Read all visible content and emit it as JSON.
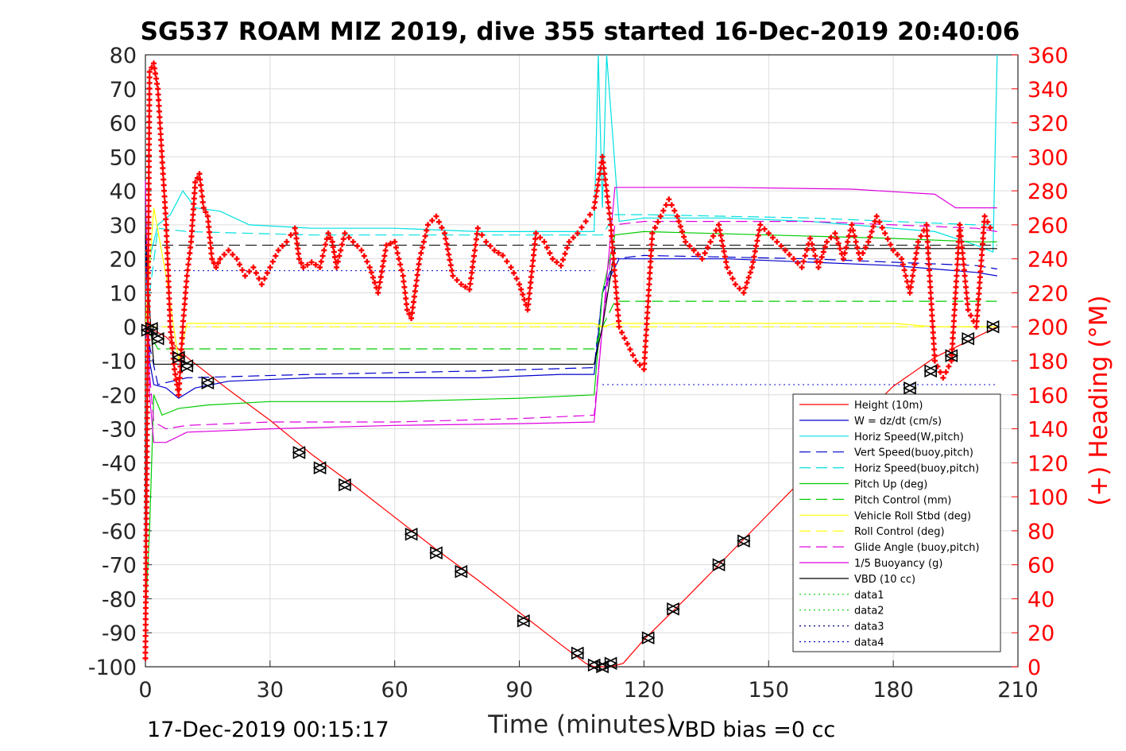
{
  "chart_data": {
    "type": "line",
    "title": "SG537 ROAM MIZ 2019, dive 355 started 16-Dec-2019 20:40:06",
    "xlabel": "Time (minutes)",
    "ylabel": "",
    "y2label": "(+) Heading (°M)",
    "xlim": [
      0,
      210
    ],
    "ylim": [
      -100,
      80
    ],
    "y2lim": [
      0,
      360
    ],
    "xticks": [
      0,
      30,
      60,
      90,
      120,
      150,
      180,
      210
    ],
    "yticks": [
      -100,
      -90,
      -80,
      -70,
      -60,
      -50,
      -40,
      -30,
      -20,
      -10,
      0,
      10,
      20,
      30,
      40,
      50,
      60,
      70,
      80
    ],
    "y2ticks": [
      0,
      20,
      40,
      60,
      80,
      100,
      120,
      140,
      160,
      180,
      200,
      220,
      240,
      260,
      280,
      300,
      320,
      340,
      360
    ],
    "grid": true,
    "legend_position": "bottom-right",
    "footer_left": "17-Dec-2019 00:15:17",
    "footer_right": "VBD bias =0 cc",
    "series": [
      {
        "name": "Height (10m)",
        "color": "#ff0000",
        "style": "solid",
        "x": [
          0,
          2,
          5,
          10,
          20,
          30,
          40,
          50,
          60,
          70,
          80,
          90,
          100,
          106,
          108,
          110,
          112,
          115,
          120,
          130,
          140,
          150,
          160,
          170,
          180,
          190,
          200,
          205
        ],
        "y": [
          0,
          -1,
          -3,
          -9,
          -18.5,
          -27.5,
          -37.5,
          -46.5,
          -56,
          -65.5,
          -74.5,
          -84,
          -93.5,
          -99,
          -100,
          -100.5,
          -100,
          -99,
          -92,
          -80,
          -67.5,
          -55,
          -42.5,
          -29.5,
          -17.5,
          -9,
          -3,
          0
        ]
      },
      {
        "name": "W = dz/dt (cm/s)",
        "color": "#0000cc",
        "style": "solid",
        "x": [
          0,
          1,
          2,
          5,
          8,
          12,
          20,
          40,
          60,
          80,
          100,
          108,
          110,
          114,
          120,
          140,
          160,
          180,
          190,
          200,
          205
        ],
        "y": [
          26,
          -10,
          -17,
          -18,
          -21,
          -18,
          -16,
          -15,
          -15,
          -15,
          -14,
          -14,
          10,
          20,
          20,
          20,
          19,
          18,
          17,
          16,
          15
        ]
      },
      {
        "name": "Horiz Speed(W,pitch)",
        "color": "#00e0e0",
        "style": "solid",
        "x": [
          0,
          1,
          3,
          6,
          9,
          12,
          18,
          25,
          40,
          60,
          80,
          100,
          108,
          109,
          110,
          111,
          114,
          120,
          140,
          160,
          180,
          190,
          200,
          204,
          205
        ],
        "y": [
          22,
          20,
          30,
          33,
          40,
          35,
          34,
          30,
          29,
          29,
          28,
          28,
          28,
          80,
          35,
          80,
          31,
          32,
          32,
          31,
          29,
          28,
          24,
          22,
          80
        ]
      },
      {
        "name": "Vert Speed(buoy,pitch)",
        "color": "#0000cc",
        "style": "dashed",
        "x": [
          0,
          3,
          10,
          40,
          80,
          108,
          110,
          113,
          120,
          160,
          200,
          205
        ],
        "y": [
          0,
          -17,
          -15,
          -14,
          -13,
          -12,
          10,
          20,
          21,
          20,
          18,
          17
        ]
      },
      {
        "name": "Horiz Speed(buoy,pitch)",
        "color": "#00e0e0",
        "style": "dashed",
        "x": [
          0,
          3,
          10,
          40,
          80,
          108,
          110,
          113,
          120,
          160,
          200,
          205
        ],
        "y": [
          0,
          29,
          28,
          27,
          27,
          27,
          27,
          33,
          33,
          32,
          30,
          30
        ]
      },
      {
        "name": "Pitch Up (deg)",
        "color": "#00cc00",
        "style": "solid",
        "x": [
          0,
          1,
          2,
          4,
          8,
          15,
          30,
          60,
          90,
          108,
          110,
          113,
          120,
          150,
          180,
          200,
          205
        ],
        "y": [
          -85,
          -60,
          -20,
          -26,
          -24,
          -23,
          -22,
          -22,
          -21,
          -20,
          10,
          27,
          28,
          27,
          26,
          25,
          25
        ]
      },
      {
        "name": "Pitch Control (mm)",
        "color": "#00cc00",
        "style": "dashed",
        "x": [
          0,
          3,
          108,
          110,
          113,
          205
        ],
        "y": [
          0,
          -6.5,
          -6.5,
          0,
          7.5,
          7.5
        ]
      },
      {
        "name": "Vehicle Roll Stbd (deg)",
        "color": "#ffff00",
        "style": "solid",
        "x": [
          0,
          2,
          5,
          8,
          10,
          20,
          40,
          60,
          80,
          100,
          108,
          110,
          113,
          120,
          140,
          160,
          180,
          190,
          200,
          205
        ],
        "y": [
          0,
          35,
          15,
          -10,
          1,
          1,
          1,
          1,
          1,
          1,
          1,
          0,
          1,
          1,
          1,
          1,
          1,
          0,
          0,
          0
        ]
      },
      {
        "name": "Roll Control (deg)",
        "color": "#ffff00",
        "style": "dashed",
        "x": [
          0,
          2,
          205
        ],
        "y": [
          0,
          0,
          0
        ]
      },
      {
        "name": "Glide Angle (buoy,pitch)",
        "color": "#dd00dd",
        "style": "dashed",
        "x": [
          0,
          2,
          5,
          10,
          30,
          60,
          90,
          108,
          110,
          113,
          120,
          160,
          200,
          205
        ],
        "y": [
          0,
          -28,
          -30,
          -29,
          -28,
          -28,
          -27,
          -26,
          0,
          30,
          31,
          31,
          29,
          28
        ]
      },
      {
        "name": "1/5 Buoyancy (g)",
        "color": "#dd00dd",
        "style": "solid",
        "x": [
          0,
          1,
          2,
          5,
          10,
          30,
          60,
          90,
          108,
          110,
          113,
          140,
          170,
          190,
          195,
          205
        ],
        "y": [
          43,
          -20,
          -34,
          -34,
          -31,
          -30,
          -29,
          -28.5,
          -28,
          0,
          41,
          41,
          40.5,
          39,
          35,
          35
        ]
      },
      {
        "name": "VBD (10 cc)",
        "color": "#000000",
        "style": "solid",
        "x": [
          0,
          1,
          2,
          3,
          108,
          110,
          113,
          205
        ],
        "y": [
          27,
          5,
          -11,
          -11,
          -11,
          0,
          23,
          23
        ]
      },
      {
        "name": "data1",
        "color": "#00cc00",
        "style": "dotted",
        "x": [],
        "y": []
      },
      {
        "name": "data2",
        "color": "#00cc00",
        "style": "dotted",
        "x": [],
        "y": []
      },
      {
        "name": "data3",
        "color": "#000080",
        "style": "dotted",
        "x": [],
        "y": []
      },
      {
        "name": "data4",
        "color": "#0000cc",
        "style": "dotted",
        "x": [],
        "y": []
      }
    ],
    "reference_lines": [
      {
        "color": "#000000",
        "style": "dashed",
        "y": 24,
        "from": 0,
        "to": 205
      },
      {
        "color": "#0000cc",
        "style": "dotted",
        "y": 16.5,
        "from": 0,
        "to": 108
      },
      {
        "color": "#0000cc",
        "style": "dotted",
        "y": -17,
        "from": 110,
        "to": 205
      }
    ],
    "heading_series": {
      "name": "Heading",
      "axis": "right",
      "color": "#ff0000",
      "marker": "+",
      "x": [
        0,
        1,
        2,
        3,
        4,
        5,
        6,
        7,
        8,
        9,
        10,
        11,
        12,
        13,
        14,
        15,
        16,
        17,
        18,
        20,
        22,
        24,
        26,
        28,
        30,
        32,
        34,
        36,
        37,
        38,
        40,
        42,
        44,
        45,
        46,
        48,
        50,
        52,
        54,
        56,
        58,
        60,
        62,
        63,
        64,
        66,
        68,
        70,
        72,
        74,
        76,
        78,
        80,
        82,
        84,
        86,
        88,
        90,
        92,
        94,
        96,
        98,
        100,
        102,
        104,
        106,
        108,
        110,
        112,
        114,
        116,
        118,
        120,
        122,
        124,
        126,
        128,
        130,
        132,
        134,
        136,
        138,
        140,
        142,
        144,
        146,
        148,
        150,
        152,
        154,
        156,
        158,
        160,
        162,
        164,
        166,
        168,
        170,
        172,
        174,
        176,
        178,
        180,
        182,
        184,
        186,
        188,
        190,
        192,
        194,
        196,
        198,
        200,
        202,
        204
      ],
      "y": [
        5,
        350,
        355,
        340,
        300,
        260,
        200,
        175,
        160,
        200,
        230,
        250,
        285,
        290,
        270,
        265,
        240,
        235,
        240,
        245,
        240,
        230,
        235,
        225,
        235,
        245,
        250,
        258,
        240,
        235,
        238,
        235,
        255,
        250,
        235,
        255,
        250,
        245,
        235,
        220,
        248,
        250,
        230,
        210,
        205,
        240,
        260,
        265,
        255,
        230,
        225,
        222,
        258,
        250,
        245,
        242,
        235,
        225,
        210,
        255,
        250,
        240,
        236,
        250,
        255,
        262,
        270,
        300,
        260,
        200,
        190,
        180,
        175,
        255,
        265,
        275,
        265,
        250,
        245,
        240,
        250,
        260,
        235,
        225,
        220,
        235,
        260,
        255,
        250,
        245,
        240,
        235,
        252,
        235,
        250,
        255,
        240,
        260,
        240,
        250,
        265,
        255,
        245,
        240,
        220,
        250,
        260,
        180,
        170,
        180,
        260,
        210,
        200,
        265,
        255
      ]
    },
    "depth_markers": {
      "color": "#000000",
      "x": [
        0.5,
        1.5,
        3,
        8,
        10,
        15,
        37,
        42,
        48,
        64,
        70,
        76,
        91,
        104,
        108,
        110,
        112,
        121,
        127,
        138,
        144,
        184,
        189,
        194,
        198,
        204
      ],
      "y": [
        -1,
        -0.5,
        -3.5,
        -9,
        -11.5,
        -16.5,
        -37,
        -41.5,
        -46.5,
        -61,
        -66.5,
        -72,
        -86.5,
        -96,
        -99.5,
        -100,
        -99,
        -91.5,
        -83,
        -70,
        -63,
        -18,
        -13,
        -8.5,
        -3.5,
        0
      ]
    }
  }
}
